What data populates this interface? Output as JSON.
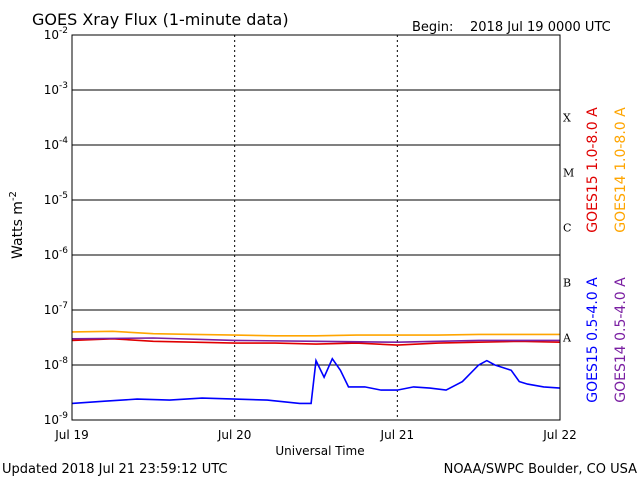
{
  "chart_data": {
    "type": "line",
    "title": "GOES Xray Flux (1-minute data)",
    "begin_label": "Begin:",
    "begin_value": "2018 Jul 19 0000 UTC",
    "xlabel": "Universal Time",
    "ylabel": "Watts m",
    "ylabel_sup": "-2",
    "x_ticks": [
      "Jul 19",
      "Jul 20",
      "Jul 21",
      "Jul 22"
    ],
    "xlim_days": [
      0,
      3
    ],
    "y_scale": "log",
    "ylim": [
      1e-09,
      0.01
    ],
    "y_ticks": [
      {
        "base": "10",
        "exp": "-2"
      },
      {
        "base": "10",
        "exp": "-3"
      },
      {
        "base": "10",
        "exp": "-4"
      },
      {
        "base": "10",
        "exp": "-5"
      },
      {
        "base": "10",
        "exp": "-6"
      },
      {
        "base": "10",
        "exp": "-7"
      },
      {
        "base": "10",
        "exp": "-8"
      },
      {
        "base": "10",
        "exp": "-9"
      }
    ],
    "flare_classes": [
      "X",
      "M",
      "C",
      "B",
      "A"
    ],
    "grid": true,
    "series": [
      {
        "name": "GOES15 1.0-8.0 A",
        "color": "#e00000",
        "x": [
          0.0,
          0.25,
          0.5,
          0.75,
          1.0,
          1.25,
          1.5,
          1.75,
          2.0,
          2.25,
          2.5,
          2.75,
          3.0
        ],
        "y": [
          2.8e-08,
          3e-08,
          2.7e-08,
          2.6e-08,
          2.5e-08,
          2.5e-08,
          2.4e-08,
          2.5e-08,
          2.3e-08,
          2.5e-08,
          2.6e-08,
          2.7e-08,
          2.6e-08
        ]
      },
      {
        "name": "GOES14 1.0-8.0 A",
        "color": "#ffa500",
        "x": [
          0.0,
          0.25,
          0.5,
          0.75,
          1.0,
          1.25,
          1.5,
          1.75,
          2.0,
          2.25,
          2.5,
          2.75,
          3.0
        ],
        "y": [
          4e-08,
          4.1e-08,
          3.7e-08,
          3.6e-08,
          3.5e-08,
          3.4e-08,
          3.4e-08,
          3.5e-08,
          3.5e-08,
          3.5e-08,
          3.6e-08,
          3.6e-08,
          3.6e-08
        ]
      },
      {
        "name": "GOES15 0.5-4.0 A",
        "color": "#0000ff",
        "x": [
          0.0,
          0.2,
          0.4,
          0.6,
          0.8,
          1.0,
          1.2,
          1.4,
          1.47,
          1.5,
          1.55,
          1.6,
          1.65,
          1.7,
          1.8,
          1.9,
          2.0,
          2.1,
          2.2,
          2.3,
          2.4,
          2.5,
          2.55,
          2.6,
          2.7,
          2.75,
          2.8,
          2.9,
          3.0
        ],
        "y": [
          2e-09,
          2.2e-09,
          2.4e-09,
          2.3e-09,
          2.5e-09,
          2.4e-09,
          2.3e-09,
          2e-09,
          2e-09,
          1.2e-08,
          6e-09,
          1.3e-08,
          8e-09,
          4e-09,
          4e-09,
          3.5e-09,
          3.5e-09,
          4e-09,
          3.8e-09,
          3.5e-09,
          5e-09,
          1e-08,
          1.2e-08,
          1e-08,
          8e-09,
          5e-09,
          4.5e-09,
          4e-09,
          3.8e-09
        ]
      },
      {
        "name": "GOES14 0.5-4.0 A",
        "color": "#7a1fa2",
        "x": [
          0.0,
          0.5,
          1.0,
          1.5,
          2.0,
          2.5,
          3.0
        ],
        "y": [
          3e-08,
          3.1e-08,
          2.8e-08,
          2.7e-08,
          2.6e-08,
          2.8e-08,
          2.8e-08
        ]
      }
    ]
  },
  "footer": {
    "updated": "Updated 2018 Jul 21 23:59:12 UTC",
    "credit": "NOAA/SWPC Boulder, CO USA"
  }
}
